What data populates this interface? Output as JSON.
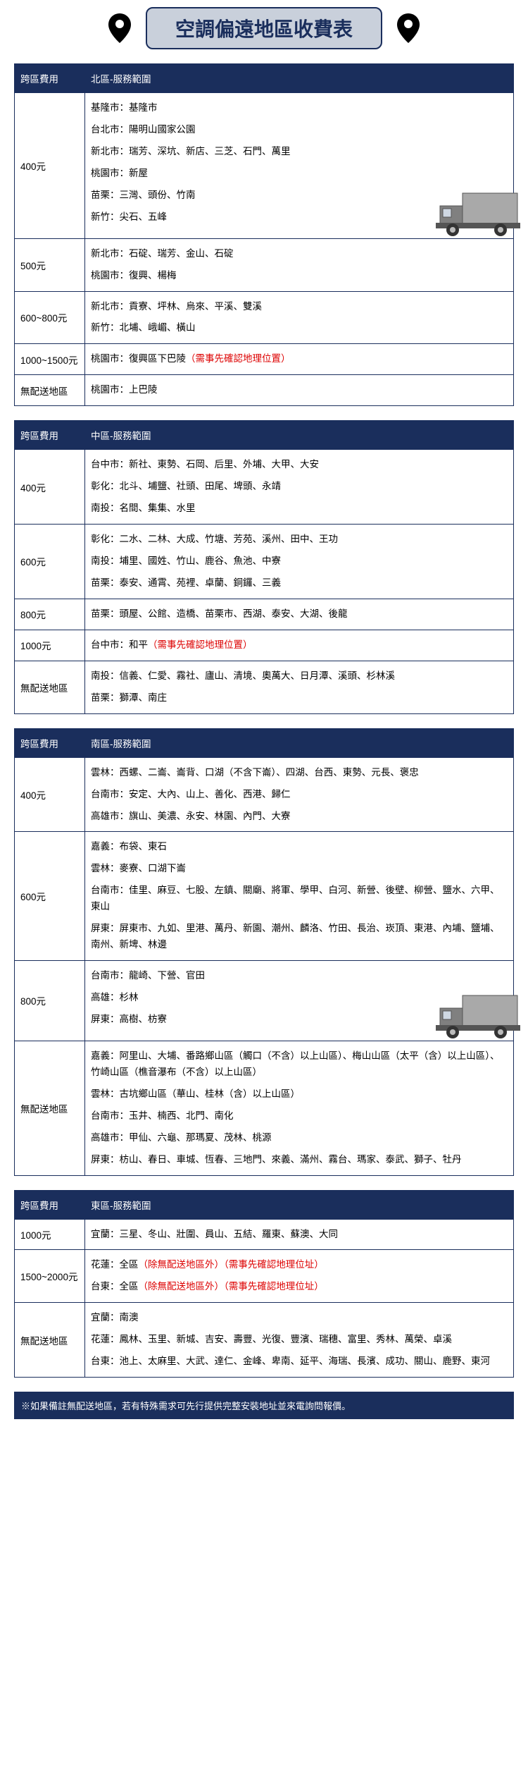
{
  "title": "空調偏遠地區收費表",
  "colors": {
    "headerBg": "#1a2e5c",
    "titleBoxBg": "#c9d0db",
    "noteRed": "#d00"
  },
  "labels": {
    "feeHeader": "跨區費用"
  },
  "regions": [
    {
      "name": "北區-服務範圍",
      "hasTruck": true,
      "rows": [
        {
          "fee": "400元",
          "lines": [
            "基隆市：基隆市",
            "台北市：陽明山國家公園",
            "新北市：瑞芳、深坑、新店、三芝、石門、萬里",
            "桃園市：新屋",
            "苗栗：三灣、頭份、竹南",
            "新竹：尖石、五峰"
          ]
        },
        {
          "fee": "500元",
          "lines": [
            "新北市：石碇、瑞芳、金山、石碇",
            "桃園市：復興、楊梅"
          ]
        },
        {
          "fee": "600~800元",
          "lines": [
            "新北市：貢寮、坪林、烏來、平溪、雙溪",
            "新竹：北埔、峨嵋、橫山"
          ]
        },
        {
          "fee": "1000~1500元",
          "lines": [
            "桃園市：復興區下巴陵<span class=\"note-red\">（需事先確認地理位置）</span>"
          ]
        },
        {
          "fee": "無配送地區",
          "lines": [
            "桃園市：上巴陵"
          ]
        }
      ]
    },
    {
      "name": "中區-服務範圍",
      "hasTruck": false,
      "rows": [
        {
          "fee": "400元",
          "lines": [
            "台中市：新社、東勢、石岡、后里、外埔、大甲、大安",
            "彰化：北斗、埔鹽、社頭、田尾、埤頭、永靖",
            "南投：名間、集集、水里"
          ]
        },
        {
          "fee": "600元",
          "lines": [
            "彰化：二水、二林、大成、竹塘、芳苑、溪州、田中、王功",
            "南投：埔里、國姓、竹山、鹿谷、魚池、中寮",
            "苗栗：泰安、通霄、苑裡、卓蘭、銅鑼、三義"
          ]
        },
        {
          "fee": "800元",
          "lines": [
            "苗栗：頭屋、公館、造橋、苗栗市、西湖、泰安、大湖、後龍"
          ]
        },
        {
          "fee": "1000元",
          "lines": [
            "台中市：和平<span class=\"note-red\">（需事先確認地理位置）</span>"
          ]
        },
        {
          "fee": "無配送地區",
          "lines": [
            "南投：信義、仁愛、霧社、廬山、清境、奧萬大、日月潭、溪頭、杉林溪",
            "苗栗：獅潭、南庄"
          ]
        }
      ]
    },
    {
      "name": "南區-服務範圍",
      "hasTruck": true,
      "rows": [
        {
          "fee": "400元",
          "lines": [
            "雲林：西螺、二崙、崙背、口湖（不含下崙）、四湖、台西、東勢、元長、褒忠",
            "台南市：安定、大內、山上、善化、西港、歸仁",
            "高雄市：旗山、美濃、永安、林園、內門、大寮"
          ]
        },
        {
          "fee": "600元",
          "lines": [
            "嘉義：布袋、東石",
            "雲林：麥寮、口湖下崙",
            "台南市：佳里、麻豆、七股、左鎮、關廟、將軍、學甲、白河、新營、後壁、柳營、鹽水、六甲、東山",
            "屏東：屏東市、九如、里港、萬丹、新園、潮州、麟洛、竹田、長治、崁頂、東港、內埔、鹽埔、南州、新埤、林邊"
          ]
        },
        {
          "fee": "800元",
          "lines": [
            "台南市：龍崎、下營、官田",
            "高雄：杉林",
            "屏東：高樹、枋寮"
          ]
        },
        {
          "fee": "無配送地區",
          "lines": [
            "嘉義：阿里山、大埔、番路鄉山區（觸口（不含）以上山區）、梅山山區（太平（含）以上山區）、竹崎山區（樵音瀑布（不含）以上山區）",
            "雲林：古坑鄉山區（華山、桂林（含）以上山區）",
            "台南市：玉井、楠西、北門、南化",
            "高雄市：甲仙、六龜、那瑪夏、茂林、桃源",
            "屏東：枋山、春日、車城、恆春、三地門、來義、滿州、霧台、瑪家、泰武、獅子、牡丹"
          ]
        }
      ]
    },
    {
      "name": "東區-服務範圍",
      "hasTruck": false,
      "rows": [
        {
          "fee": "1000元",
          "lines": [
            "宜蘭：三星、冬山、壯圍、員山、五結、羅東、蘇澳、大同"
          ]
        },
        {
          "fee": "1500~2000元",
          "lines": [
            "花蓮：全區<span class=\"note-red\">（除無配送地區外）（需事先確認地理位址）</span>",
            "台東：全區<span class=\"note-red\">（除無配送地區外）（需事先確認地理位址）</span>"
          ]
        },
        {
          "fee": "無配送地區",
          "lines": [
            "宜蘭：南澳",
            "花蓮：鳳林、玉里、新城、吉安、壽豐、光復、豐濱、瑞穗、富里、秀林、萬榮、卓溪",
            "台東：池上、太麻里、大武、達仁、金峰、卑南、延平、海瑞、長濱、成功、關山、鹿野、東河"
          ]
        }
      ]
    }
  ],
  "footnote": "※如果備註無配送地區，若有特殊需求可先行提供完整安裝地址並來電詢問報價。"
}
